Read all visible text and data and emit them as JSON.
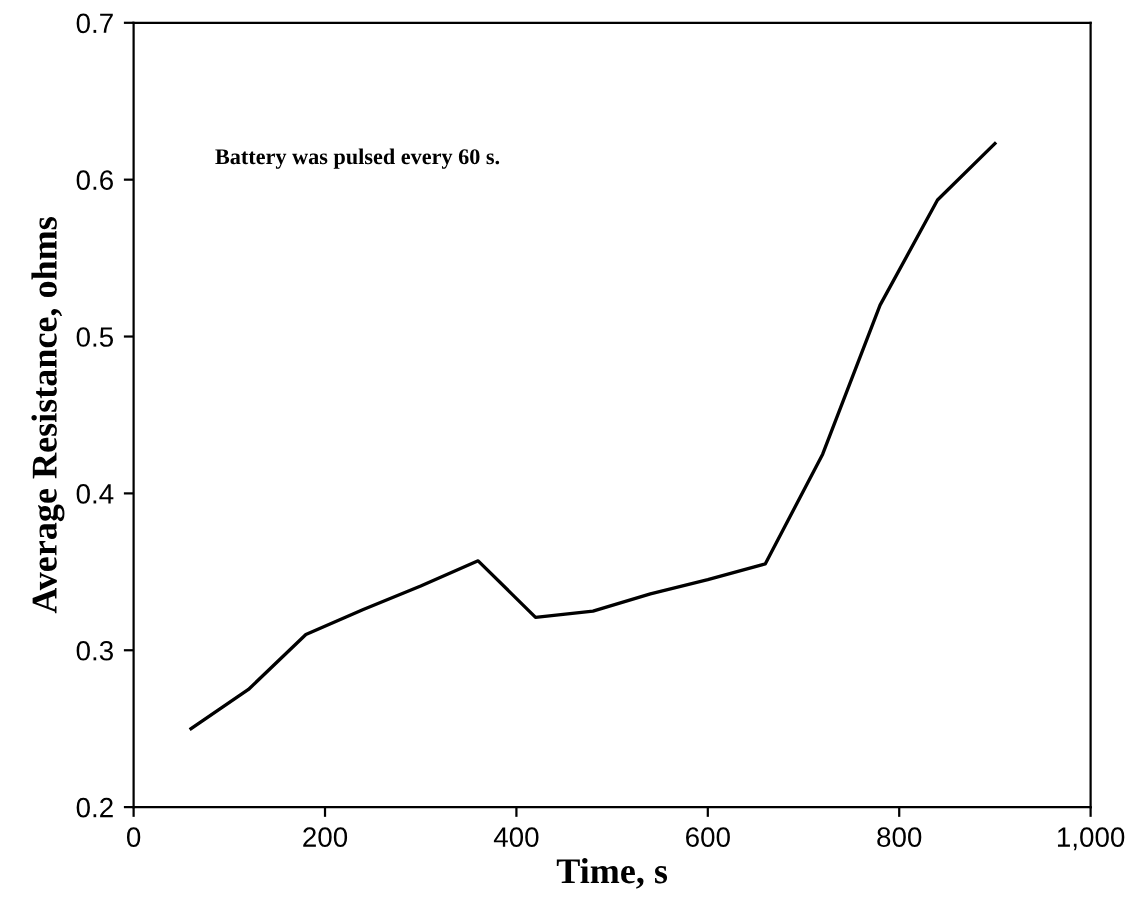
{
  "chart_data": {
    "type": "line",
    "xlabel": "Time, s",
    "ylabel": "Average Resistance, ohms",
    "x": [
      60,
      120,
      180,
      240,
      300,
      360,
      420,
      480,
      540,
      600,
      660,
      720,
      780,
      840,
      900
    ],
    "series": [
      {
        "color": "#000000",
        "values": [
          0.25,
          0.275,
          0.31,
          0.326,
          0.341,
          0.357,
          0.321,
          0.325,
          0.336,
          0.345,
          0.355,
          0.425,
          0.52,
          0.587,
          0.623
        ]
      }
    ],
    "xlim": [
      0,
      1000
    ],
    "xticks": [
      0,
      200,
      400,
      600,
      800,
      {
        "value": 1000,
        "label": "1,000"
      }
    ],
    "ylim": [
      0.2,
      0.7
    ],
    "yticks": [
      0.2,
      0.3,
      0.4,
      0.5,
      0.6,
      0.7
    ],
    "annotations": [
      "Battery was pulsed every 60 s."
    ],
    "grid": false,
    "legend": false,
    "marker": "none",
    "line_style": "solid"
  }
}
